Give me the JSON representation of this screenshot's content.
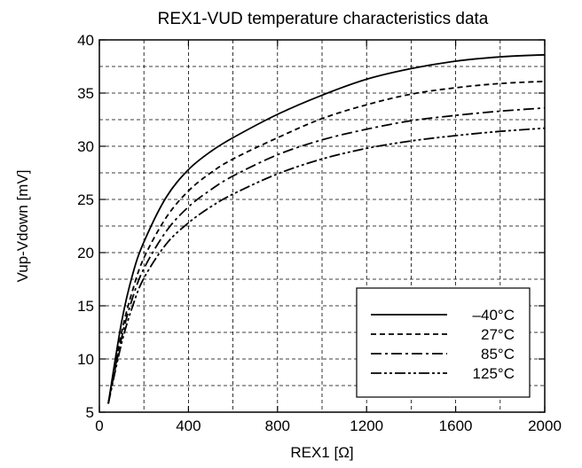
{
  "chart_data": {
    "type": "line",
    "title": "REX1-VUD temperature characteristics data",
    "xlabel": "REX1 [Ω]",
    "ylabel": "Vup-Vdown [mV]",
    "xlim": [
      0,
      2000
    ],
    "ylim": [
      5,
      40
    ],
    "xticks": [
      0,
      400,
      800,
      1200,
      1600,
      2000
    ],
    "yticks": [
      5,
      10,
      15,
      20,
      25,
      30,
      35,
      40
    ],
    "grid": true,
    "legend_position": "bottom-right",
    "x": [
      40,
      100,
      150,
      200,
      300,
      400,
      500,
      600,
      800,
      1000,
      1200,
      1400,
      1600,
      1800,
      2000
    ],
    "series": [
      {
        "name": "–40°C",
        "dash": "solid",
        "values": [
          5.8,
          13.5,
          18.0,
          21.0,
          25.2,
          27.8,
          29.5,
          30.8,
          33.0,
          34.8,
          36.3,
          37.3,
          38.0,
          38.4,
          38.6
        ]
      },
      {
        "name": "27°C",
        "dash": "dashed",
        "values": [
          5.8,
          12.5,
          16.5,
          19.5,
          23.3,
          25.8,
          27.5,
          28.8,
          30.8,
          32.6,
          33.9,
          34.9,
          35.5,
          35.9,
          36.1
        ]
      },
      {
        "name": "85°C",
        "dash": "dashdot",
        "values": [
          5.8,
          12.0,
          15.8,
          18.5,
          22.0,
          24.3,
          25.9,
          27.2,
          29.2,
          30.6,
          31.6,
          32.4,
          32.9,
          33.3,
          33.6
        ]
      },
      {
        "name": "125°C",
        "dash": "dashdotdot",
        "values": [
          5.8,
          11.5,
          15.0,
          17.6,
          20.8,
          22.8,
          24.3,
          25.5,
          27.4,
          28.8,
          29.8,
          30.5,
          31.0,
          31.4,
          31.7
        ]
      }
    ]
  }
}
